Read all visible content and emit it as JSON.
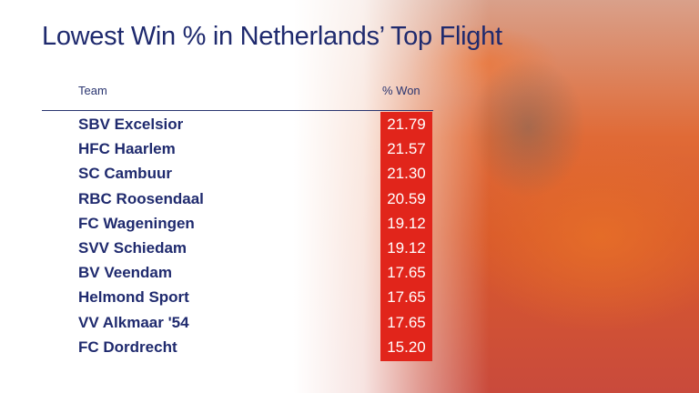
{
  "title": "Lowest Win % in Netherlands’ Top Flight",
  "table": {
    "headers": {
      "team": "Team",
      "won": "% Won"
    },
    "rows": [
      {
        "team": "SBV Excelsior",
        "won": "21.79"
      },
      {
        "team": "HFC Haarlem",
        "won": "21.57"
      },
      {
        "team": "SC Cambuur",
        "won": "21.30"
      },
      {
        "team": "RBC Roosendaal",
        "won": "20.59"
      },
      {
        "team": "FC Wageningen",
        "won": "19.12"
      },
      {
        "team": "SVV Schiedam",
        "won": "19.12"
      },
      {
        "team": "BV Veendam",
        "won": "17.65"
      },
      {
        "team": "Helmond Sport",
        "won": "17.65"
      },
      {
        "team": "VV Alkmaar '54",
        "won": "17.65"
      },
      {
        "team": "FC Dordrecht",
        "won": "15.20"
      }
    ]
  },
  "colors": {
    "title": "#1f2a6e",
    "accent": "#e1251b"
  }
}
